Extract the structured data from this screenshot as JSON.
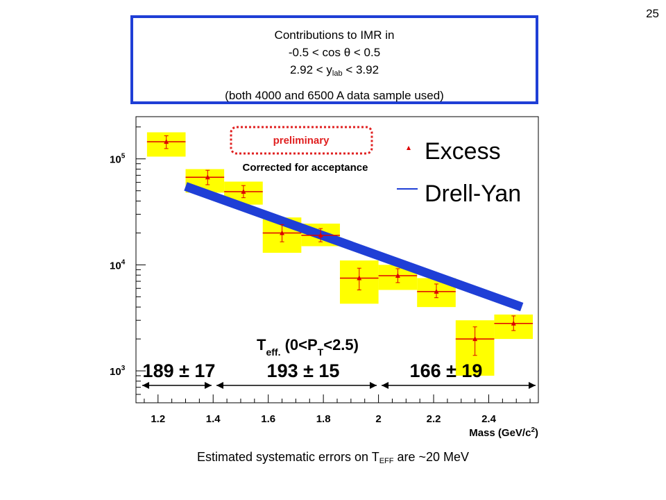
{
  "slide": {
    "number": "25"
  },
  "info_box": {
    "line1": "Contributions to IMR in",
    "line2_pre": "-0.5 < cos ",
    "line2_theta": "θ",
    "line2_post": " < 0.5",
    "line3_pre": "2.92 < y",
    "line3_sub": "lab",
    "line3_post": " < 3.92",
    "line4": "(both 4000 and 6500 A data sample used)",
    "border_color": "#1f3fd6"
  },
  "footer": {
    "pre": "Estimated systematic errors on T",
    "sub": "EFF",
    "post": " are ~20 MeV"
  },
  "chart_data": {
    "type": "scatter",
    "xlabel_pre": "Mass (GeV/c",
    "xlabel_sup": "2",
    "xlabel_post": ")",
    "ylabel": "",
    "xlim": [
      1.12,
      2.58
    ],
    "ylim": [
      500,
      250000
    ],
    "yscale": "log",
    "x_ticks": [
      "1.2",
      "1.4",
      "1.6",
      "1.8",
      "2",
      "2.2",
      "2.4"
    ],
    "x_tick_values": [
      1.2,
      1.4,
      1.6,
      1.8,
      2.0,
      2.2,
      2.4
    ],
    "y_ticks": [
      {
        "value": 100000,
        "base": "10",
        "exp": "5"
      },
      {
        "value": 10000,
        "base": "10",
        "exp": "4"
      },
      {
        "value": 1000,
        "base": "10",
        "exp": "3"
      }
    ],
    "legend": [
      {
        "label": "Excess",
        "marker": "triangle",
        "color": "#dd0000"
      },
      {
        "label": "Drell-Yan",
        "marker": "line",
        "color": "#1f3fd6"
      }
    ],
    "series": [
      {
        "name": "Excess",
        "color": "#dd0000",
        "points": [
          {
            "x": 1.23,
            "xlo": 1.16,
            "xhi": 1.3,
            "y": 145000,
            "ylo": 125000,
            "yhi": 165000,
            "syslo": 105000,
            "syshi": 178000
          },
          {
            "x": 1.38,
            "xlo": 1.3,
            "xhi": 1.44,
            "y": 67000,
            "ylo": 57000,
            "yhi": 78000,
            "syslo": 48000,
            "syshi": 80000
          },
          {
            "x": 1.51,
            "xlo": 1.44,
            "xhi": 1.58,
            "y": 49000,
            "ylo": 43000,
            "yhi": 56000,
            "syslo": 37000,
            "syshi": 61000
          },
          {
            "x": 1.65,
            "xlo": 1.58,
            "xhi": 1.72,
            "y": 20000,
            "ylo": 16500,
            "yhi": 24000,
            "syslo": 13000,
            "syshi": 28000
          },
          {
            "x": 1.79,
            "xlo": 1.72,
            "xhi": 1.86,
            "y": 19000,
            "ylo": 16500,
            "yhi": 22000,
            "syslo": 15000,
            "syshi": 24500
          },
          {
            "x": 1.93,
            "xlo": 1.86,
            "xhi": 2.0,
            "y": 7500,
            "ylo": 5800,
            "yhi": 9300,
            "syslo": 4300,
            "syshi": 11000
          },
          {
            "x": 2.07,
            "xlo": 2.0,
            "xhi": 2.14,
            "y": 7900,
            "ylo": 6800,
            "yhi": 9200,
            "syslo": 5800,
            "syshi": 10000
          },
          {
            "x": 2.21,
            "xlo": 2.14,
            "xhi": 2.28,
            "y": 5600,
            "ylo": 4900,
            "yhi": 6600,
            "syslo": 4000,
            "syshi": 7500
          },
          {
            "x": 2.35,
            "xlo": 2.28,
            "xhi": 2.42,
            "y": 2000,
            "ylo": 1400,
            "yhi": 2600,
            "syslo": 900,
            "syshi": 3000
          },
          {
            "x": 2.49,
            "xlo": 2.42,
            "xhi": 2.56,
            "y": 2800,
            "ylo": 2400,
            "yhi": 3300,
            "syslo": 2000,
            "syshi": 3400
          }
        ]
      },
      {
        "name": "Drell-Yan",
        "color": "#1f3fd6",
        "x": [
          1.3,
          2.52
        ],
        "y": [
          55000,
          4000
        ]
      }
    ],
    "annotations": {
      "preliminary": "preliminary",
      "preliminary_color": "#e02020",
      "corrected": "Corrected for acceptance",
      "teff_title_pre": "T",
      "teff_title_sub": "eff.",
      "teff_title_mid": " (0<P",
      "teff_title_sub2": "T",
      "teff_title_post": "<2.5)",
      "teff_values": [
        {
          "text": "189 ± 17",
          "from": 1.13,
          "to": 1.4
        },
        {
          "text": "193 ± 15",
          "from": 1.4,
          "to": 2.0
        },
        {
          "text": "166 ± 19",
          "from": 2.0,
          "to": 2.58
        }
      ]
    },
    "sys_box_color": "#ffff00",
    "grid": false
  }
}
